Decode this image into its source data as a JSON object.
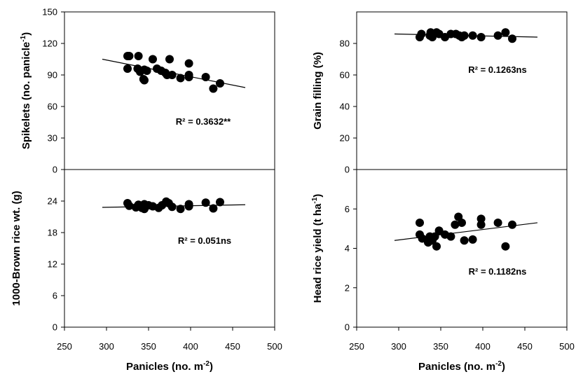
{
  "chart_data": [
    {
      "type": "scatter",
      "id": "spikelets",
      "ylabel": "Spikelets (no. panicle",
      "ylabel_sup": "-1",
      "ylabel_tail": ")",
      "xlabel": "",
      "xlim": [
        250,
        500
      ],
      "ylim": [
        0,
        150
      ],
      "yticks": [
        "0",
        "30",
        "60",
        "90",
        "120",
        "150"
      ],
      "xticks": [],
      "annotation": "R² = 0.3632**",
      "trendline": {
        "x": [
          295,
          465
        ],
        "y": [
          105,
          78
        ]
      },
      "series": [
        {
          "points": [
            [
              325,
              108
            ],
            [
              327,
              108
            ],
            [
              338,
              108
            ],
            [
              325,
              96
            ],
            [
              337,
              96
            ],
            [
              340,
              93
            ],
            [
              345,
              95
            ],
            [
              348,
              94
            ],
            [
              344,
              86
            ],
            [
              345,
              85
            ],
            [
              355,
              105
            ],
            [
              360,
              96
            ],
            [
              365,
              94
            ],
            [
              370,
              92
            ],
            [
              372,
              90
            ],
            [
              375,
              105
            ],
            [
              378,
              90
            ],
            [
              388,
              87
            ],
            [
              398,
              101
            ],
            [
              398,
              90
            ],
            [
              398,
              88
            ],
            [
              418,
              88
            ],
            [
              427,
              77
            ],
            [
              435,
              82
            ]
          ]
        }
      ]
    },
    {
      "type": "scatter",
      "id": "grain-filling",
      "ylabel": "Grain filling (%)",
      "xlabel": "",
      "xlim": [
        250,
        500
      ],
      "ylim": [
        0,
        100
      ],
      "yticks": [
        "0",
        "20",
        "40",
        "60",
        "80"
      ],
      "xticks": [],
      "annotation": "R² = 0.1263ns",
      "trendline": {
        "x": [
          295,
          465
        ],
        "y": [
          86,
          84
        ]
      },
      "series": [
        {
          "points": [
            [
              325,
              84
            ],
            [
              327,
              86
            ],
            [
              337,
              85
            ],
            [
              338,
              87
            ],
            [
              340,
              84
            ],
            [
              345,
              87
            ],
            [
              348,
              86
            ],
            [
              355,
              84
            ],
            [
              362,
              86
            ],
            [
              368,
              86
            ],
            [
              372,
              85
            ],
            [
              375,
              84
            ],
            [
              378,
              85
            ],
            [
              388,
              85
            ],
            [
              398,
              84
            ],
            [
              418,
              85
            ],
            [
              427,
              87
            ],
            [
              435,
              83
            ]
          ]
        }
      ]
    },
    {
      "type": "scatter",
      "id": "brown-rice-wt",
      "ylabel": "1000-Brown rice wt. (g)",
      "xlabel": "Panicles (no. m",
      "xlabel_sup": "-2",
      "xlabel_tail": ")",
      "xlim": [
        250,
        500
      ],
      "ylim": [
        0,
        30
      ],
      "yticks": [
        "0",
        "6",
        "12",
        "18",
        "24"
      ],
      "xticks": [
        "250",
        "300",
        "350",
        "400",
        "450",
        "500"
      ],
      "annotation": "R² = 0.051ns",
      "trendline": {
        "x": [
          295,
          465
        ],
        "y": [
          22.8,
          23.3
        ]
      },
      "series": [
        {
          "points": [
            [
              325,
              23.6
            ],
            [
              327,
              23.1
            ],
            [
              335,
              22.8
            ],
            [
              338,
              23.3
            ],
            [
              342,
              22.7
            ],
            [
              345,
              22.5
            ],
            [
              345,
              23.4
            ],
            [
              350,
              23.2
            ],
            [
              355,
              23.0
            ],
            [
              362,
              22.7
            ],
            [
              366,
              23.2
            ],
            [
              371,
              23.9
            ],
            [
              374,
              23.6
            ],
            [
              378,
              22.9
            ],
            [
              388,
              22.5
            ],
            [
              398,
              23.4
            ],
            [
              398,
              23.0
            ],
            [
              418,
              23.7
            ],
            [
              427,
              22.6
            ],
            [
              435,
              23.8
            ]
          ]
        }
      ]
    },
    {
      "type": "scatter",
      "id": "head-rice-yield",
      "ylabel": "Head rice yield (t ha",
      "ylabel_sup": "-1",
      "ylabel_tail": ")",
      "xlabel": "Panicles (no. m",
      "xlabel_sup": "-2",
      "xlabel_tail": ")",
      "xlim": [
        250,
        500
      ],
      "ylim": [
        0,
        8
      ],
      "yticks": [
        "0",
        "2",
        "4",
        "6"
      ],
      "xticks": [
        "250",
        "300",
        "350",
        "400",
        "450",
        "500"
      ],
      "annotation": "R² = 0.1182ns",
      "trendline": {
        "x": [
          295,
          465
        ],
        "y": [
          4.4,
          5.3
        ]
      },
      "series": [
        {
          "points": [
            [
              325,
              5.3
            ],
            [
              325,
              4.7
            ],
            [
              328,
              4.5
            ],
            [
              335,
              4.3
            ],
            [
              337,
              4.6
            ],
            [
              340,
              4.4
            ],
            [
              343,
              4.6
            ],
            [
              345,
              4.1
            ],
            [
              348,
              4.9
            ],
            [
              355,
              4.7
            ],
            [
              362,
              4.6
            ],
            [
              367,
              5.2
            ],
            [
              371,
              5.6
            ],
            [
              375,
              5.3
            ],
            [
              378,
              4.4
            ],
            [
              388,
              4.45
            ],
            [
              398,
              5.5
            ],
            [
              398,
              5.2
            ],
            [
              418,
              5.3
            ],
            [
              427,
              4.1
            ],
            [
              435,
              5.2
            ]
          ]
        }
      ]
    }
  ]
}
